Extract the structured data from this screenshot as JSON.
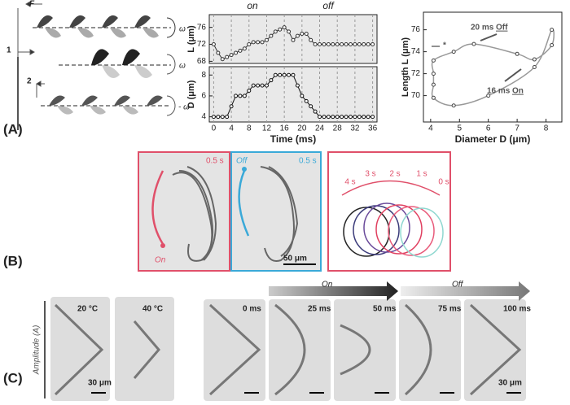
{
  "panels": {
    "a": "(A)",
    "b": "(B)",
    "c": "(C)"
  },
  "diagram": {
    "force": "F",
    "omega_top": "ω",
    "omega_mid": "ω",
    "omega_bottom": "- ω",
    "step1": "1",
    "step2": "2"
  },
  "chart_data": [
    {
      "type": "line",
      "ylabel": "L (μm)",
      "annotations": [
        "on",
        "off"
      ],
      "color": "#333333",
      "x": [
        0,
        1,
        2,
        3,
        4,
        5,
        6,
        7,
        8,
        9,
        10,
        11,
        12,
        13,
        14,
        15,
        16,
        17,
        18,
        19,
        20,
        21,
        22,
        23,
        24,
        25,
        26,
        27,
        28,
        29,
        30,
        31,
        32,
        33,
        34,
        35,
        36
      ],
      "values": [
        72,
        70,
        68.5,
        69,
        69.5,
        70,
        70.5,
        71,
        72,
        72.5,
        72.5,
        72.5,
        73,
        74,
        75,
        75.5,
        76,
        75,
        73,
        74,
        74.5,
        74.5,
        73,
        72,
        72,
        72,
        72,
        72,
        72,
        72,
        72,
        72,
        72,
        72,
        72,
        72,
        72
      ],
      "xlim": [
        -1,
        37
      ],
      "xticks": [
        0,
        4,
        8,
        12,
        16,
        20,
        24,
        28,
        32,
        36
      ],
      "ylim": [
        67.5,
        79
      ],
      "yticks": [
        68,
        72,
        76
      ]
    },
    {
      "type": "line",
      "ylabel": "D (μm)",
      "xlabel": "Time (ms)",
      "color": "#111111",
      "x": [
        0,
        1,
        2,
        3,
        4,
        5,
        6,
        7,
        8,
        9,
        10,
        11,
        12,
        13,
        14,
        15,
        16,
        17,
        18,
        19,
        20,
        21,
        22,
        23,
        24,
        25,
        26,
        27,
        28,
        29,
        30,
        31,
        32,
        33,
        34,
        35,
        36
      ],
      "values": [
        4,
        4,
        4,
        4,
        5,
        6,
        6,
        6,
        6.5,
        7,
        7,
        7,
        7,
        7.5,
        8,
        8,
        8,
        8,
        8,
        7,
        6,
        5.5,
        5,
        4.5,
        4,
        4,
        4,
        4,
        4,
        4,
        4,
        4,
        4,
        4,
        4,
        4,
        4
      ],
      "xlim": [
        -1,
        37
      ],
      "xticks": [
        0,
        4,
        8,
        12,
        16,
        20,
        24,
        28,
        32,
        36
      ],
      "ylim": [
        3.5,
        8.8
      ],
      "yticks": [
        4,
        6,
        8
      ]
    },
    {
      "type": "scatter",
      "xlabel": "Diameter D (μm)",
      "ylabel": "Length L (μm)",
      "color": "#999999",
      "annotations": [
        "20 ms",
        "Off",
        "16 ms",
        "On",
        "*"
      ],
      "x": [
        4.1,
        4.1,
        4.8,
        5.5,
        7.0,
        7.6,
        8.2,
        8.2,
        7.6,
        6.0,
        4.8,
        4.1,
        4.1
      ],
      "y": [
        72.0,
        73.2,
        74.0,
        74.7,
        73.8,
        73.3,
        74.6,
        76.0,
        72.6,
        70.0,
        69.1,
        69.8,
        71.0
      ],
      "xlim": [
        3.75,
        8.55
      ],
      "xticks": [
        4,
        5,
        6,
        7,
        8
      ],
      "ylim": [
        67.6,
        77.6
      ],
      "yticks": [
        70,
        72,
        74,
        76
      ]
    }
  ],
  "trajectory": {
    "on_label": "On",
    "off_label": "Off",
    "time_on": "0.5 s",
    "time_off": "0.5 s",
    "scale": "50 μm",
    "clock": [
      "4 s",
      "3 s",
      "2 s",
      "1 s",
      "0 s"
    ]
  },
  "snapshots": {
    "amplitude": "Amplitude (A)",
    "temps": [
      "20 °C",
      "40 °C"
    ],
    "times": [
      "0 ms",
      "25 ms",
      "50 ms",
      "75 ms",
      "100 ms"
    ],
    "on": "On",
    "off": "Off",
    "scale_left": "30 μm",
    "scale_right": "30 μm"
  }
}
